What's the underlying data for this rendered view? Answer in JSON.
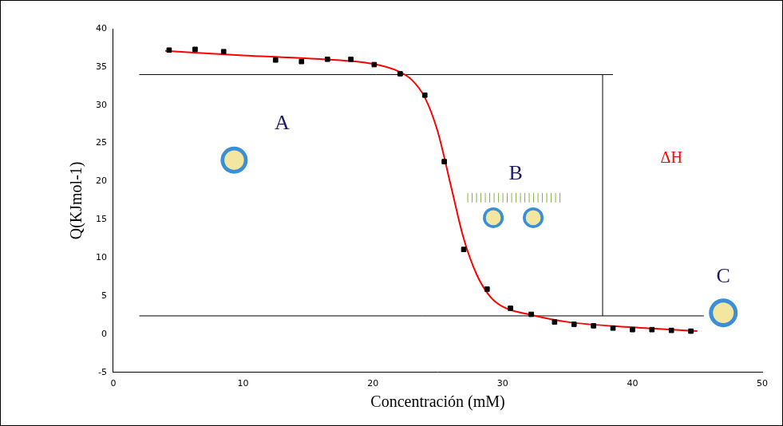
{
  "chart_data": {
    "type": "scatter",
    "x_label": "Concentración (mM)",
    "y_label": "Q(KJmol-1)",
    "xlim": [
      0,
      50
    ],
    "xticks": [
      0,
      10,
      20,
      30,
      40,
      50
    ],
    "ylim": [
      -5,
      40
    ],
    "yticks": [
      -5,
      0,
      5,
      10,
      15,
      20,
      25,
      30,
      35,
      40
    ],
    "grid": false,
    "series": [
      {
        "type": "scatter",
        "color": "#000000",
        "marker": "square",
        "line_style": "none",
        "x": [
          4.3,
          6.3,
          8.5,
          12.5,
          14.5,
          16.5,
          18.3,
          20.1,
          22.1,
          24.0,
          25.5,
          27.0,
          28.8,
          30.6,
          32.2,
          34.0,
          35.5,
          37.0,
          38.5,
          40.0,
          41.5,
          43.0,
          44.5
        ],
        "values": [
          37.2,
          37.3,
          37.0,
          35.9,
          35.7,
          36.0,
          36.0,
          35.3,
          34.1,
          31.3,
          22.6,
          11.1,
          5.9,
          3.4,
          2.6,
          1.6,
          1.3,
          1.1,
          0.8,
          0.6,
          0.6,
          0.5,
          0.4
        ]
      },
      {
        "type": "line",
        "color": "#ff0000",
        "marker": "none",
        "line_style": "solid",
        "x": [
          4.0,
          10.0,
          15.0,
          20.0,
          22.0,
          23.0,
          24.0,
          25.0,
          26.0,
          27.0,
          28.0,
          29.0,
          30.0,
          32.0,
          35.0,
          40.0,
          45.0
        ],
        "values": [
          37.1,
          36.5,
          36.1,
          35.4,
          34.4,
          33.3,
          31.0,
          26.5,
          19.5,
          12.5,
          7.8,
          5.0,
          3.6,
          2.6,
          1.6,
          0.9,
          0.4
        ]
      }
    ],
    "reference_lines": [
      {
        "color": "#000000",
        "x": [
          2.0,
          38.5
        ],
        "y": [
          34.0,
          34.0
        ]
      },
      {
        "color": "#000000",
        "x": [
          2.0,
          45.5
        ],
        "y": [
          2.4,
          2.4
        ]
      },
      {
        "color": "#000000",
        "x": [
          37.7,
          37.7
        ],
        "y": [
          2.4,
          34.0
        ]
      }
    ],
    "annotations": [
      "A",
      "B",
      "C",
      "ΔH"
    ]
  }
}
